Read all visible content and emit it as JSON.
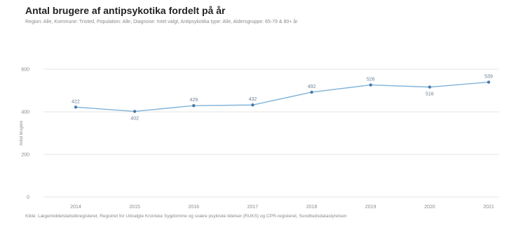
{
  "header": {
    "title": "Antal brugere af antipsykotika fordelt på år",
    "subtitle": "Region: Alle, Kommune: Tristed, Population: Alle, Diagnose: Intet valgt, Antipsykotika type: Alle, Aldersgruppe: 65-79 & 80+ år"
  },
  "footer": {
    "source": "Kilde: Lægemiddelstatistikregisteret, Registret for Udvalgte Kroniske Sygdomme og svære psykiske lidelser (RUKS) og CPR-registeret, Sundhedsdatastyrelsen"
  },
  "colors": {
    "line": "#7fb3d9",
    "marker": "#4a7aa6",
    "grid": "#e6e6e6"
  },
  "chart_data": {
    "type": "line",
    "title": "Antal brugere af antipsykotika fordelt på år",
    "ylabel": "Antal brugere",
    "xlabel": "",
    "ylim": [
      0,
      600
    ],
    "yticks": [
      0,
      200,
      400,
      600
    ],
    "grid": true,
    "categories": [
      "2014",
      "2015",
      "2016",
      "2017",
      "2018",
      "2019",
      "2020",
      "2021"
    ],
    "series": [
      {
        "values": [
          422,
          402,
          429,
          432,
          492,
          526,
          516,
          539
        ]
      }
    ]
  }
}
